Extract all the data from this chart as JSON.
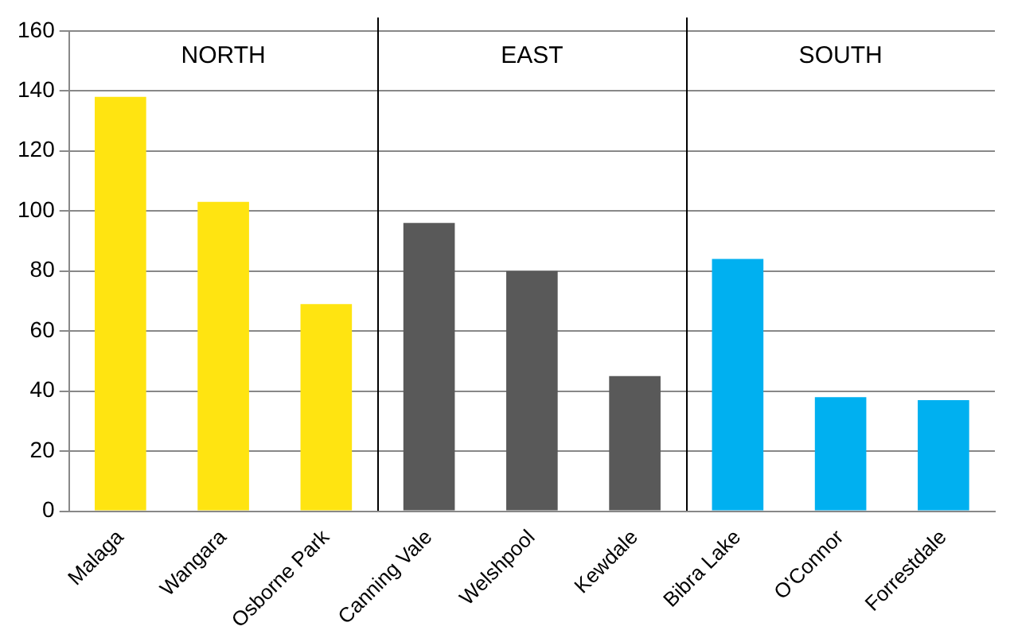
{
  "chart_data": {
    "type": "bar",
    "categories": [
      "Malaga",
      "Wangara",
      "Osborne Park",
      "Canning Vale",
      "Welshpool",
      "Kewdale",
      "Bibra Lake",
      "O'Connor",
      "Forrestdale"
    ],
    "values": [
      138,
      103,
      69,
      96,
      80,
      45,
      84,
      38,
      37
    ],
    "colors": [
      "#ffe411",
      "#ffe411",
      "#ffe411",
      "#595959",
      "#595959",
      "#595959",
      "#00b0f0",
      "#00b0f0",
      "#00b0f0"
    ],
    "ylim": [
      0,
      160
    ],
    "yticks": [
      0,
      20,
      40,
      60,
      80,
      100,
      120,
      140,
      160
    ],
    "grid": "y",
    "legend": false,
    "annotations": [
      "NORTH",
      "EAST",
      "SOUTH"
    ]
  }
}
